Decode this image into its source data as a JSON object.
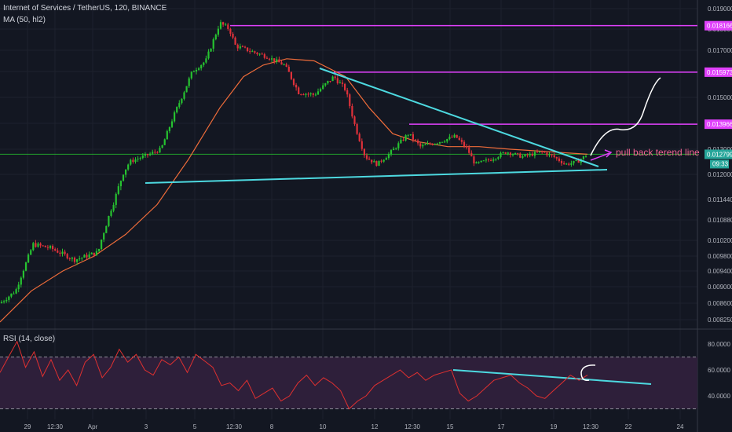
{
  "header": {
    "title": "Internet of Services / TetherUS, 120, BINANCE",
    "ma_label": "MA (50, hl2)",
    "rsi_label": "RSI (14, close)"
  },
  "colors": {
    "background": "#131722",
    "up": "#26c230",
    "down": "#e0313a",
    "ma": "#ef6c3a",
    "trendline": "#4dd9e0",
    "resistance": "#e040fb",
    "rsi_line": "#e03030",
    "rsi_band": "#2e1f3a",
    "price_badge": "#26a69a"
  },
  "chart_data": [
    {
      "type": "candlestick",
      "symbol": "IOST/USDT",
      "interval_minutes": 120,
      "y_axis_ticks": [
        0.019,
        0.018,
        0.017,
        0.016,
        0.015,
        0.014,
        0.013,
        0.012,
        0.01144,
        0.01088,
        0.0102,
        0.0098,
        0.0094,
        0.009,
        0.0086,
        0.00825
      ],
      "y_axis_labels": [
        "0.019000",
        "0.018000",
        "0.017000",
        "0.016000",
        "0.015000",
        "0.014000",
        "0.013000",
        "0.012000",
        "0.011440",
        "0.010880",
        "0.010200",
        "0.009800",
        "0.009400",
        "0.009000",
        "0.008600",
        "0.008250"
      ],
      "x_axis_labels": [
        "29",
        "12:30",
        "Apr",
        "3",
        "5",
        "12:30",
        "8",
        "10",
        "12",
        "12:30",
        "15",
        "17",
        "19",
        "12:30",
        "22",
        "24"
      ],
      "last_price": "0.012799",
      "countdown": "09:33",
      "price_path": [
        [
          0,
          0.0086
        ],
        [
          20,
          0.0089
        ],
        [
          42,
          0.0101
        ],
        [
          65,
          0.01
        ],
        [
          95,
          0.0097
        ],
        [
          125,
          0.0099
        ],
        [
          140,
          0.0111
        ],
        [
          165,
          0.0125
        ],
        [
          190,
          0.0128
        ],
        [
          205,
          0.013
        ],
        [
          220,
          0.0142
        ],
        [
          245,
          0.016
        ],
        [
          262,
          0.0165
        ],
        [
          280,
          0.0183
        ],
        [
          292,
          0.018
        ],
        [
          300,
          0.0172
        ],
        [
          340,
          0.0167
        ],
        [
          362,
          0.0163
        ],
        [
          380,
          0.0152
        ],
        [
          400,
          0.0151
        ],
        [
          425,
          0.0158
        ],
        [
          440,
          0.0153
        ],
        [
          452,
          0.0139
        ],
        [
          465,
          0.0127
        ],
        [
          480,
          0.0124
        ],
        [
          495,
          0.0128
        ],
        [
          520,
          0.0136
        ],
        [
          535,
          0.0131
        ],
        [
          560,
          0.0133
        ],
        [
          580,
          0.0135
        ],
        [
          595,
          0.013
        ],
        [
          605,
          0.0124
        ],
        [
          625,
          0.0126
        ],
        [
          645,
          0.0129
        ],
        [
          665,
          0.0127
        ],
        [
          690,
          0.0129
        ],
        [
          705,
          0.0127
        ],
        [
          720,
          0.0124
        ],
        [
          735,
          0.0125
        ],
        [
          748,
          0.0128
        ]
      ],
      "ma_path": [
        [
          0,
          0.0082
        ],
        [
          40,
          0.0089
        ],
        [
          80,
          0.0094
        ],
        [
          120,
          0.0098
        ],
        [
          160,
          0.0104
        ],
        [
          200,
          0.0113
        ],
        [
          240,
          0.0126
        ],
        [
          280,
          0.0146
        ],
        [
          310,
          0.0158
        ],
        [
          335,
          0.0163
        ],
        [
          365,
          0.0166
        ],
        [
          400,
          0.0165
        ],
        [
          440,
          0.0158
        ],
        [
          470,
          0.0146
        ],
        [
          500,
          0.0136
        ],
        [
          530,
          0.0133
        ],
        [
          570,
          0.0131
        ],
        [
          610,
          0.0131
        ],
        [
          650,
          0.013
        ],
        [
          700,
          0.0129
        ],
        [
          748,
          0.0128
        ]
      ],
      "horizontal_levels": [
        {
          "value": 0.018166,
          "label": "0.018166"
        },
        {
          "value": 0.015973,
          "label": "0.015973"
        },
        {
          "value": 0.013966,
          "label": "0.013966"
        }
      ],
      "annotation": "pull back terend line"
    },
    {
      "type": "line",
      "name": "RSI (14, close)",
      "y_axis_ticks": [
        80,
        60,
        40
      ],
      "y_axis_labels": [
        "80.0000",
        "60.0000",
        "40.0000"
      ],
      "bands": [
        70,
        30
      ],
      "values": [
        58,
        70,
        82,
        62,
        74,
        55,
        68,
        52,
        60,
        48,
        66,
        72,
        54,
        62,
        76,
        66,
        72,
        60,
        56,
        68,
        64,
        70,
        58,
        72,
        67,
        62,
        48,
        50,
        44,
        52,
        38,
        42,
        46,
        36,
        40,
        50,
        56,
        48,
        54,
        50,
        44,
        30,
        36,
        40,
        48,
        52,
        56,
        60,
        54,
        58,
        52,
        56,
        58,
        60,
        42,
        36,
        40,
        46,
        52,
        54,
        56,
        50,
        46,
        40,
        38,
        44,
        50,
        56,
        52,
        56
      ]
    }
  ]
}
